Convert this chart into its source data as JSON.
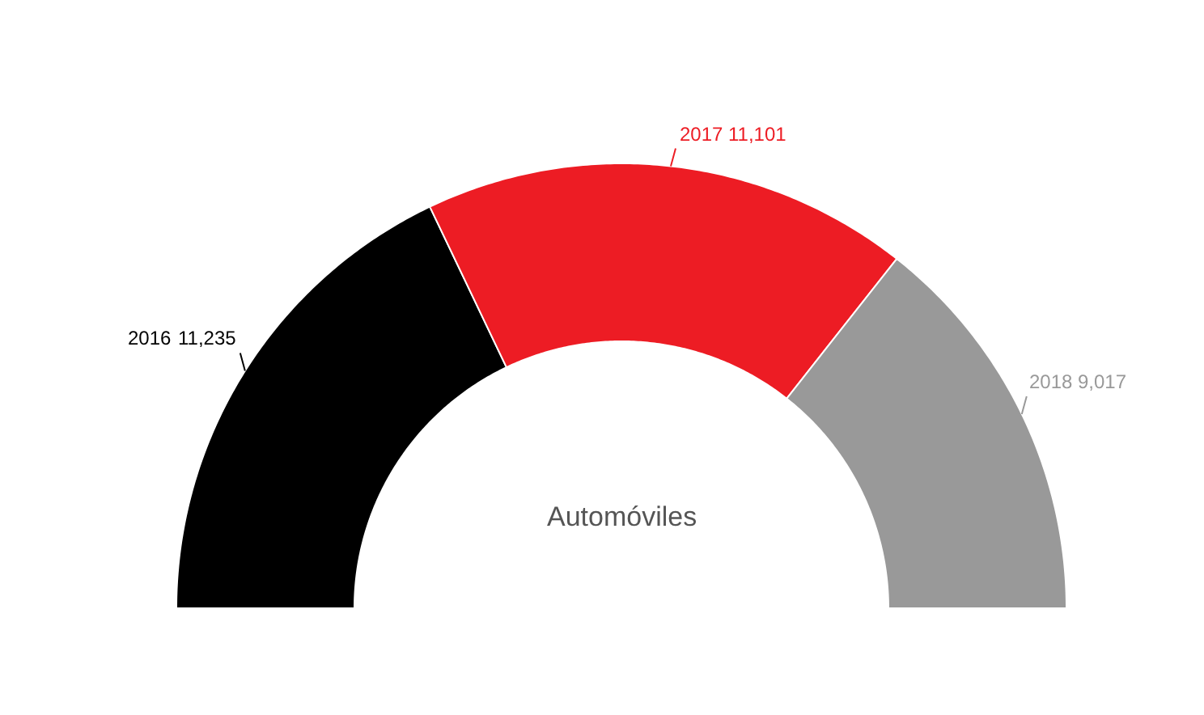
{
  "chart_data": {
    "type": "donut",
    "title": "Automóviles",
    "categories": [
      "2016",
      "2017",
      "2018"
    ],
    "values": [
      11235,
      11101,
      9017
    ],
    "colors": [
      "#000000",
      "#ed1c24",
      "#999999"
    ],
    "value_labels": [
      "11,235",
      "11,101",
      "9,017"
    ]
  }
}
